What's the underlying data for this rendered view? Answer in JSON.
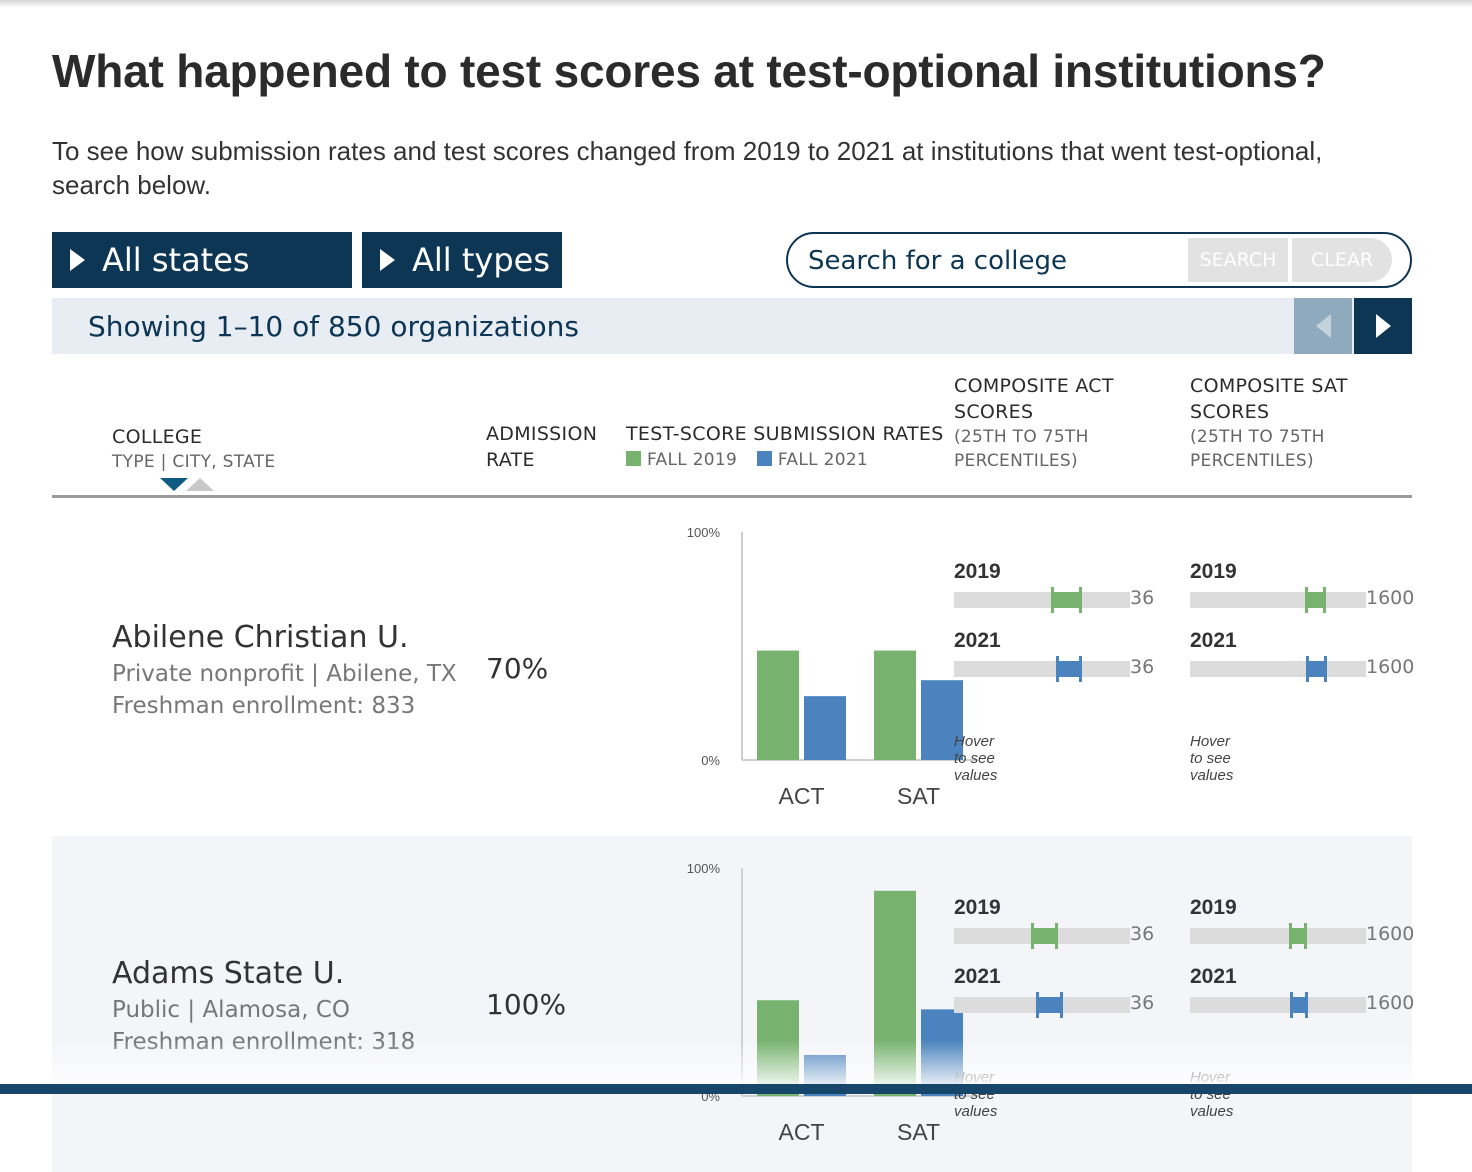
{
  "title": "What happened to test scores at test-optional institutions?",
  "intro": "To see how submission rates and test scores changed from 2019 to 2021 at institutions that went test-optional, search below.",
  "filters": {
    "states_label": "All states",
    "types_label": "All types"
  },
  "search": {
    "placeholder": "Search for a college",
    "search_label": "SEARCH",
    "clear_label": "CLEAR"
  },
  "showing": "Showing 1–10 of 850 organizations",
  "headers": {
    "college": "COLLEGE",
    "college_sub": "TYPE | CITY, STATE",
    "admission_line1": "ADMISSION",
    "admission_line2": "RATE",
    "submission": "TEST-SCORE SUBMISSION RATES",
    "legend_2019": "FALL 2019",
    "legend_2021": "FALL 2021",
    "act_line1": "COMPOSITE ACT",
    "act_line2": "SCORES",
    "act_sub1": "(25TH TO 75TH",
    "act_sub2": "PERCENTILES)",
    "sat_line1": "COMPOSITE SAT",
    "sat_line2": "SCORES",
    "sat_sub1": "(25TH TO 75TH",
    "sat_sub2": "PERCENTILES)"
  },
  "colors": {
    "navy": "#0c3654",
    "green": "#77b36f",
    "blue": "#4a83bd"
  },
  "chart_labels": {
    "y_max": "100%",
    "y_min": "0%",
    "cat_act": "ACT",
    "cat_sat": "SAT"
  },
  "range_labels": {
    "y2019": "2019",
    "y2021": "2021",
    "act_max": "36",
    "sat_max": "1600",
    "hover": "Hover to see values"
  },
  "colleges": [
    {
      "name": "Abilene Christian U.",
      "type_location": "Private nonprofit | Abilene, TX",
      "enrollment": "Freshman enrollment: 833",
      "admission_rate": "70%"
    },
    {
      "name": "Adams State U.",
      "type_location": "Public | Alamosa, CO",
      "enrollment": "Freshman enrollment: 318",
      "admission_rate": "100%"
    }
  ],
  "chart_data": [
    {
      "type": "bar",
      "categories": [
        "ACT",
        "SAT"
      ],
      "series": [
        {
          "name": "FALL 2019",
          "values": [
            48,
            48
          ]
        },
        {
          "name": "FALL 2021",
          "values": [
            28,
            35
          ]
        }
      ],
      "ylim": [
        0,
        100
      ]
    },
    {
      "type": "bar",
      "categories": [
        "ACT",
        "SAT"
      ],
      "series": [
        {
          "name": "FALL 2019",
          "values": [
            42,
            90
          ]
        },
        {
          "name": "FALL 2021",
          "values": [
            18,
            38
          ]
        }
      ],
      "ylim": [
        0,
        100
      ]
    }
  ],
  "score_ranges": [
    {
      "act": {
        "max": 36,
        "y2019": [
          20,
          26
        ],
        "y2021": [
          21,
          26
        ]
      },
      "sat": {
        "max": 1600,
        "y2019": [
          1050,
          1230
        ],
        "y2021": [
          1060,
          1240
        ]
      }
    },
    {
      "act": {
        "max": 36,
        "y2019": [
          16,
          21
        ],
        "y2021": [
          17,
          22
        ]
      },
      "sat": {
        "max": 1600,
        "y2019": [
          910,
          1050
        ],
        "y2021": [
          920,
          1060
        ]
      }
    }
  ]
}
